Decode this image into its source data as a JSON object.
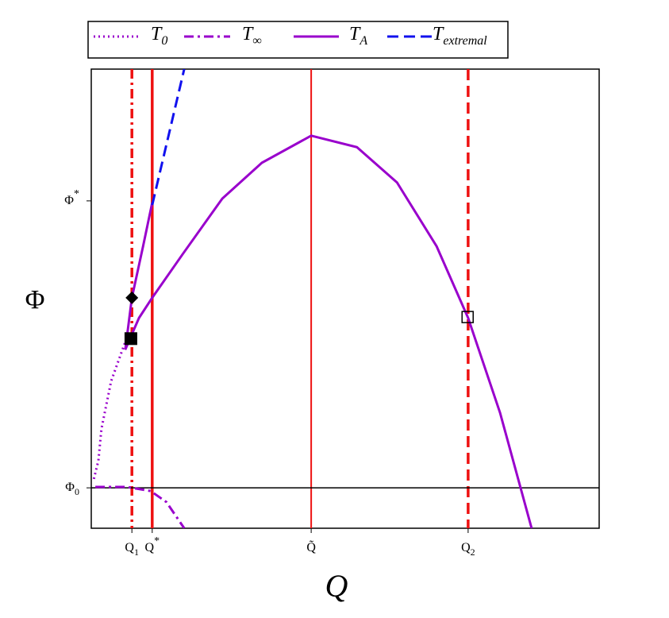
{
  "chart_data": {
    "type": "line",
    "x_label": "Q",
    "y_label": "Φ",
    "xlim": [
      0,
      100
    ],
    "ylim": [
      0,
      100
    ],
    "xticks": [
      {
        "value": 8.0,
        "label": "Q1"
      },
      {
        "value": 12.0,
        "label": "Q*"
      },
      {
        "value": 43.3,
        "label": "Q̃"
      },
      {
        "value": 74.2,
        "label": "Q2"
      }
    ],
    "yticks": [
      {
        "value": 8.8,
        "label": "Φ0"
      },
      {
        "value": 71.3,
        "label": "Φ*"
      }
    ],
    "xtick_lines": {
      "color": "#ee1111",
      "styles": [
        "dashdot",
        "solid-thick",
        "solid",
        "dashed"
      ]
    },
    "ytick_lines": {
      "color": "#000000",
      "styles": [
        "solid",
        "none"
      ]
    },
    "series": [
      {
        "name": "T0",
        "color": "#9900cc",
        "dash": "dotted",
        "x": [
          6.6,
          3.9,
          2.0,
          1.4,
          0.5
        ],
        "values": [
          40.3,
          32.0,
          21.6,
          14.7,
          10.7
        ]
      },
      {
        "name": "T∞",
        "color": "#9900cc",
        "dash": "dashdot",
        "x": [
          0.8,
          7.0,
          11.7,
          14.8,
          18.3
        ],
        "values": [
          9.0,
          9.0,
          8.1,
          5.7,
          0
        ]
      },
      {
        "name": "TA",
        "color": "#9900cc",
        "dash": "solid",
        "x": [
          12.0,
          10.2,
          8.0,
          6.7,
          7.5,
          9.4,
          12.0,
          18.0,
          25.8,
          33.6,
          43.3,
          52.3,
          60.2,
          68.0,
          74.2,
          80.5,
          86.7
        ],
        "values": [
          70.9,
          61.4,
          50.2,
          38.9,
          41.0,
          45.8,
          50.2,
          59.7,
          71.8,
          79.6,
          85.5,
          83.0,
          75.3,
          61.4,
          45.8,
          25.1,
          0
        ]
      },
      {
        "name": "Textremal",
        "color": "#1111ee",
        "dash": "dashed",
        "x": [
          12.0,
          18.3
        ],
        "values": [
          70.4,
          100
        ]
      }
    ],
    "markers": [
      {
        "x": 8.0,
        "y": 50.2,
        "shape": "diamond"
      },
      {
        "x": 7.8,
        "y": 41.3,
        "shape": "filled-square"
      },
      {
        "x": 74.1,
        "y": 46.0,
        "shape": "open-square"
      }
    ]
  }
}
